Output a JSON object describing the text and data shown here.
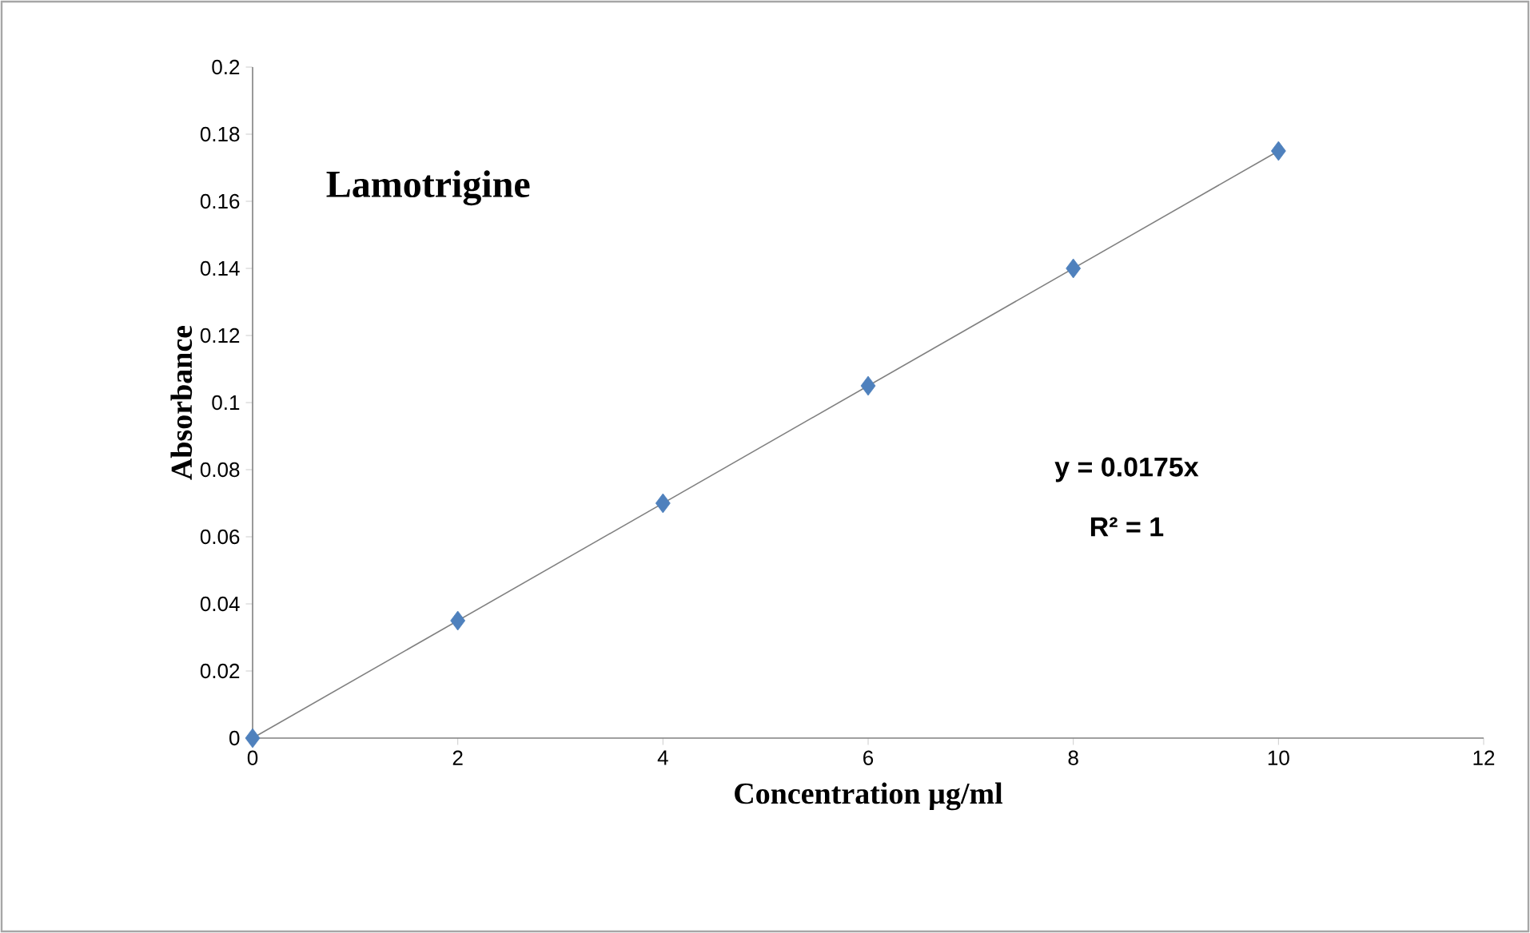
{
  "chart_data": {
    "type": "scatter",
    "title": "Lamotrigine",
    "xlabel": "Concentration µg/ml",
    "ylabel": "Absorbance",
    "xlim": [
      0,
      12
    ],
    "xticks": [
      0,
      2,
      4,
      6,
      8,
      10,
      12
    ],
    "ylim": [
      0,
      0.2
    ],
    "yticks": [
      0,
      0.02,
      0.04,
      0.06,
      0.08,
      0.1,
      0.12,
      0.14,
      0.16,
      0.18,
      0.2
    ],
    "grid": false,
    "marker": "diamond",
    "series": [
      {
        "color": "#4f81bd",
        "x": [
          0,
          2,
          4,
          6,
          8,
          10
        ],
        "values": [
          0,
          0.035,
          0.07,
          0.105,
          0.14,
          0.175
        ]
      },
      {
        "type": "line",
        "color": "#808080",
        "marker": "none",
        "line_style": "solid",
        "x": [
          0,
          10
        ],
        "values": [
          0,
          0.175
        ]
      }
    ],
    "annotations": [
      "y = 0.0175x",
      "R² = 1"
    ]
  }
}
